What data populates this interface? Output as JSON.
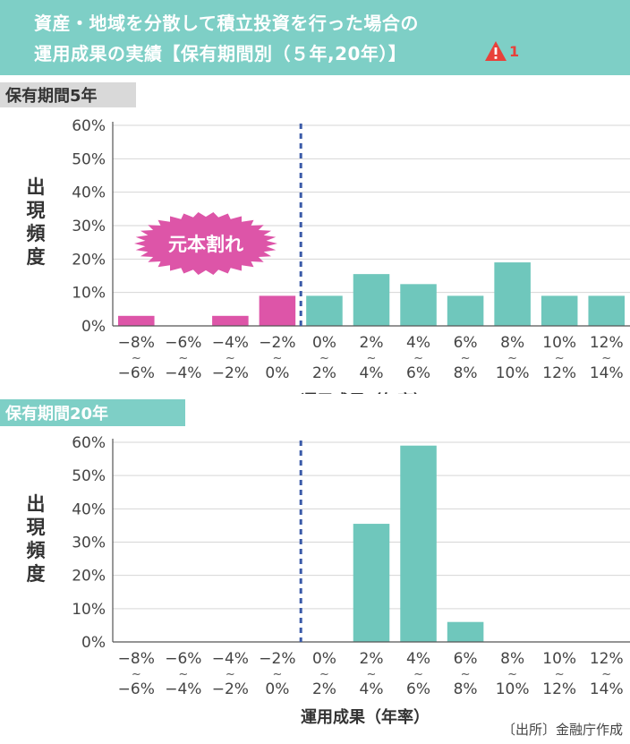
{
  "title": {
    "line1": "資産・地域を分散して積立投資を行った場合の",
    "line2": "運用成果の実績【保有期間別（５年,20年）】",
    "warning_number": "1"
  },
  "colors": {
    "header_bg": "#7ecfc6",
    "teal_bar": "#6fc7bc",
    "pink_bar": "#dd55a8",
    "dashed_line": "#3a5aa8",
    "warning": "#e8413a"
  },
  "sections": {
    "five_year_label": "保有期間5年",
    "twenty_year_label": "保有期間20年"
  },
  "badge": {
    "text": "元本割れ"
  },
  "source": "〔出所〕金融庁作成",
  "chart_data": [
    {
      "type": "bar",
      "ylabel": "出現頻度",
      "xlabel": "運用成果（年率）",
      "ylim": [
        0,
        60
      ],
      "y_ticks": [
        "0%",
        "10%",
        "20%",
        "30%",
        "40%",
        "50%",
        "60%"
      ],
      "categories_top": [
        "−8%",
        "−6%",
        "−4%",
        "−2%",
        "0%",
        "2%",
        "4%",
        "6%",
        "8%",
        "10%",
        "12%"
      ],
      "categories_bottom": [
        "−6%",
        "−4%",
        "−2%",
        "0%",
        "2%",
        "4%",
        "6%",
        "8%",
        "10%",
        "12%",
        "14%"
      ],
      "values": [
        3,
        0,
        3,
        9,
        9,
        15.5,
        12.5,
        9,
        19,
        9,
        9
      ],
      "loss_categories": 4,
      "grid": true
    },
    {
      "type": "bar",
      "ylabel": "出現頻度",
      "xlabel": "運用成果（年率）",
      "ylim": [
        0,
        60
      ],
      "y_ticks": [
        "0%",
        "10%",
        "20%",
        "30%",
        "40%",
        "50%",
        "60%"
      ],
      "categories_top": [
        "−8%",
        "−6%",
        "−4%",
        "−2%",
        "0%",
        "2%",
        "4%",
        "6%",
        "8%",
        "10%",
        "12%"
      ],
      "categories_bottom": [
        "−6%",
        "−4%",
        "−2%",
        "0%",
        "2%",
        "4%",
        "6%",
        "8%",
        "10%",
        "12%",
        "14%"
      ],
      "values": [
        0,
        0,
        0,
        0,
        0,
        35.5,
        59,
        6,
        0,
        0,
        0
      ],
      "loss_categories": 4,
      "grid": true
    }
  ]
}
